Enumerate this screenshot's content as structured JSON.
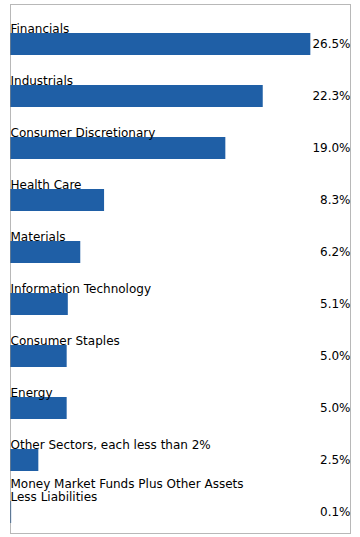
{
  "chart_data": {
    "type": "bar",
    "orientation": "horizontal",
    "categories": [
      "Financials",
      "Industrials",
      "Consumer Discretionary",
      "Health Care",
      "Materials",
      "Information Technology",
      "Consumer Staples",
      "Energy",
      "Other Sectors, each less than 2%",
      "Money Market Funds Plus Other Assets\nLess Liabilities"
    ],
    "values": [
      26.5,
      22.3,
      19.0,
      8.3,
      6.2,
      5.1,
      5.0,
      5.0,
      2.5,
      0.1
    ],
    "value_labels": [
      "26.5%",
      "22.3%",
      "19.0%",
      "8.3%",
      "6.2%",
      "5.1%",
      "5.0%",
      "5.0%",
      "2.5%",
      "0.1%"
    ],
    "color": "#1F5FA6",
    "xlim": [
      0,
      30
    ],
    "data_labels": true,
    "tick_labels": false,
    "grid": false
  }
}
